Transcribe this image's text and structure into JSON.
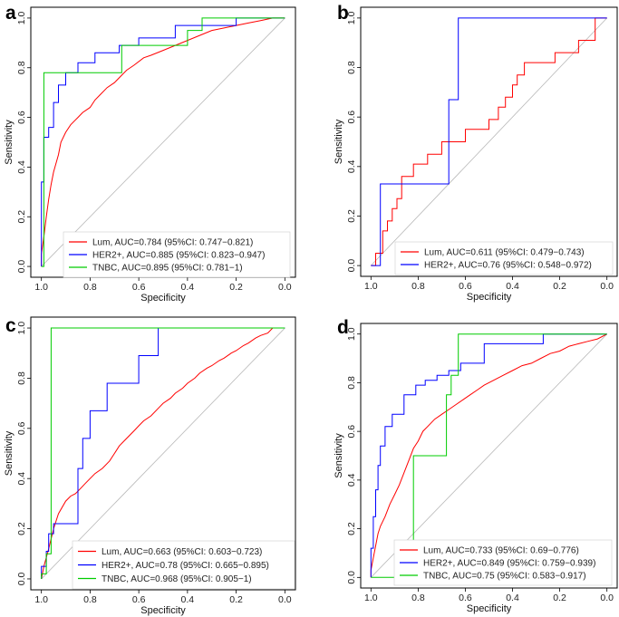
{
  "chart_data": [
    {
      "panel": "a",
      "type": "line",
      "xlabel": "Specificity",
      "ylabel": "Sensitivity",
      "xlim": [
        1.0,
        0.0
      ],
      "ylim": [
        0.0,
        1.0
      ],
      "x_ticks": [
        "1.0",
        "0.8",
        "0.6",
        "0.4",
        "0.2",
        "0.0"
      ],
      "y_ticks": [
        "0.0",
        "0.2",
        "0.4",
        "0.6",
        "0.8",
        "1.0"
      ],
      "legend_position": "bottom-right",
      "series": [
        {
          "name": "Lum, AUC=0.784 (95%CI: 0.747−0.821)",
          "color": "#ff0000",
          "x": [
            1.0,
            1.0,
            0.99,
            0.98,
            0.97,
            0.96,
            0.95,
            0.93,
            0.92,
            0.9,
            0.88,
            0.86,
            0.85,
            0.83,
            0.8,
            0.78,
            0.76,
            0.73,
            0.7,
            0.67,
            0.65,
            0.62,
            0.58,
            0.55,
            0.5,
            0.45,
            0.4,
            0.35,
            0.3,
            0.25,
            0.2,
            0.15,
            0.1,
            0.05,
            0.0
          ],
          "y": [
            0.0,
            0.05,
            0.12,
            0.2,
            0.27,
            0.33,
            0.38,
            0.45,
            0.5,
            0.54,
            0.57,
            0.59,
            0.6,
            0.62,
            0.64,
            0.67,
            0.69,
            0.72,
            0.74,
            0.77,
            0.79,
            0.81,
            0.84,
            0.85,
            0.87,
            0.89,
            0.91,
            0.93,
            0.95,
            0.96,
            0.97,
            0.98,
            0.99,
            1.0,
            1.0
          ]
        },
        {
          "name": "HER2+, AUC=0.885 (95%CI: 0.823−0.947)",
          "color": "#0000ff",
          "x": [
            1.0,
            1.0,
            0.99,
            0.99,
            0.97,
            0.97,
            0.95,
            0.95,
            0.93,
            0.93,
            0.9,
            0.9,
            0.85,
            0.85,
            0.78,
            0.78,
            0.68,
            0.68,
            0.6,
            0.6,
            0.45,
            0.45,
            0.2,
            0.2,
            0.0
          ],
          "y": [
            0.0,
            0.34,
            0.34,
            0.52,
            0.52,
            0.56,
            0.56,
            0.66,
            0.66,
            0.73,
            0.73,
            0.78,
            0.78,
            0.82,
            0.82,
            0.86,
            0.86,
            0.89,
            0.89,
            0.92,
            0.92,
            0.97,
            0.97,
            1.0,
            1.0
          ]
        },
        {
          "name": "TNBC, AUC=0.895 (95%CI: 0.781−1)",
          "color": "#00cc00",
          "x": [
            1.0,
            1.0,
            0.99,
            0.99,
            0.67,
            0.67,
            0.4,
            0.4,
            0.34,
            0.34,
            0.0
          ],
          "y": [
            0.0,
            0.0,
            0.0,
            0.78,
            0.78,
            0.89,
            0.89,
            0.95,
            0.95,
            1.0,
            1.0
          ]
        }
      ]
    },
    {
      "panel": "b",
      "type": "line",
      "xlabel": "Specificity",
      "ylabel": "Sensitivity",
      "xlim": [
        1.0,
        0.0
      ],
      "ylim": [
        0.0,
        1.0
      ],
      "x_ticks": [
        "1.0",
        "0.8",
        "0.6",
        "0.4",
        "0.2",
        "0.0"
      ],
      "y_ticks": [
        "0.0",
        "0.2",
        "0.4",
        "0.6",
        "0.8",
        "1.0"
      ],
      "legend_position": "bottom-right",
      "series": [
        {
          "name": "Lum, AUC=0.611 (95%CI: 0.479−0.743)",
          "color": "#ff0000",
          "x": [
            1.0,
            0.98,
            0.98,
            0.95,
            0.95,
            0.93,
            0.93,
            0.91,
            0.91,
            0.89,
            0.89,
            0.87,
            0.87,
            0.82,
            0.82,
            0.76,
            0.76,
            0.7,
            0.7,
            0.6,
            0.6,
            0.5,
            0.5,
            0.46,
            0.46,
            0.43,
            0.43,
            0.4,
            0.4,
            0.38,
            0.38,
            0.35,
            0.35,
            0.22,
            0.22,
            0.12,
            0.12,
            0.05,
            0.05,
            0.0
          ],
          "y": [
            0.0,
            0.0,
            0.05,
            0.05,
            0.14,
            0.14,
            0.18,
            0.18,
            0.23,
            0.23,
            0.27,
            0.27,
            0.36,
            0.36,
            0.41,
            0.41,
            0.45,
            0.45,
            0.5,
            0.5,
            0.55,
            0.55,
            0.59,
            0.59,
            0.64,
            0.64,
            0.68,
            0.68,
            0.73,
            0.73,
            0.77,
            0.77,
            0.82,
            0.82,
            0.86,
            0.86,
            0.91,
            0.91,
            1.0,
            1.0
          ]
        },
        {
          "name": "HER2+, AUC=0.76 (95%CI: 0.548−0.972)",
          "color": "#0000ff",
          "x": [
            1.0,
            0.98,
            0.98,
            0.96,
            0.96,
            0.67,
            0.67,
            0.63,
            0.63,
            0.0
          ],
          "y": [
            0.0,
            0.0,
            0.0,
            0.0,
            0.33,
            0.33,
            0.67,
            0.67,
            1.0,
            1.0
          ]
        }
      ]
    },
    {
      "panel": "c",
      "type": "line",
      "xlabel": "Specificity",
      "ylabel": "Sensitivity",
      "xlim": [
        1.0,
        0.0
      ],
      "ylim": [
        0.0,
        1.0
      ],
      "x_ticks": [
        "1.0",
        "0.8",
        "0.6",
        "0.4",
        "0.2",
        "0.0"
      ],
      "y_ticks": [
        "0.0",
        "0.2",
        "0.4",
        "0.6",
        "0.8",
        "1.0"
      ],
      "legend_position": "bottom-right",
      "series": [
        {
          "name": "Lum, AUC=0.663 (95%CI: 0.603−0.723)",
          "color": "#ff0000",
          "x": [
            1.0,
            0.99,
            0.97,
            0.95,
            0.93,
            0.9,
            0.88,
            0.86,
            0.84,
            0.82,
            0.8,
            0.78,
            0.75,
            0.72,
            0.7,
            0.68,
            0.65,
            0.62,
            0.6,
            0.58,
            0.55,
            0.52,
            0.5,
            0.47,
            0.45,
            0.42,
            0.4,
            0.37,
            0.35,
            0.32,
            0.3,
            0.27,
            0.25,
            0.22,
            0.2,
            0.17,
            0.15,
            0.12,
            0.1,
            0.07,
            0.05,
            0.0
          ],
          "y": [
            0.0,
            0.05,
            0.12,
            0.2,
            0.26,
            0.31,
            0.33,
            0.34,
            0.36,
            0.38,
            0.4,
            0.42,
            0.44,
            0.47,
            0.5,
            0.53,
            0.56,
            0.59,
            0.61,
            0.63,
            0.65,
            0.68,
            0.7,
            0.72,
            0.74,
            0.76,
            0.78,
            0.8,
            0.82,
            0.84,
            0.85,
            0.87,
            0.88,
            0.9,
            0.91,
            0.93,
            0.94,
            0.96,
            0.97,
            0.98,
            1.0,
            1.0
          ]
        },
        {
          "name": "HER2+, AUC=0.78 (95%CI: 0.665−0.895)",
          "color": "#0000ff",
          "x": [
            1.0,
            1.0,
            0.98,
            0.98,
            0.97,
            0.97,
            0.95,
            0.95,
            0.85,
            0.85,
            0.83,
            0.83,
            0.8,
            0.8,
            0.73,
            0.73,
            0.6,
            0.6,
            0.52,
            0.52,
            0.0
          ],
          "y": [
            0.0,
            0.05,
            0.05,
            0.11,
            0.11,
            0.18,
            0.18,
            0.22,
            0.22,
            0.44,
            0.44,
            0.56,
            0.56,
            0.67,
            0.67,
            0.78,
            0.78,
            0.89,
            0.89,
            1.0,
            1.0
          ]
        },
        {
          "name": "TNBC, AUC=0.968 (95%CI: 0.905−1)",
          "color": "#00cc00",
          "x": [
            1.0,
            1.0,
            0.98,
            0.98,
            0.96,
            0.96,
            0.0
          ],
          "y": [
            0.0,
            0.02,
            0.02,
            0.1,
            0.1,
            1.0,
            1.0
          ]
        }
      ]
    },
    {
      "panel": "d",
      "type": "line",
      "xlabel": "Specificity",
      "ylabel": "Sensitivity",
      "xlim": [
        1.0,
        0.0
      ],
      "ylim": [
        0.0,
        1.0
      ],
      "x_ticks": [
        "1.0",
        "0.8",
        "0.6",
        "0.4",
        "0.2",
        "0.0"
      ],
      "y_ticks": [
        "0.0",
        "0.2",
        "0.4",
        "0.6",
        "0.8",
        "1.0"
      ],
      "legend_position": "bottom-right",
      "series": [
        {
          "name": "Lum, AUC=0.733 (95%CI: 0.69−0.776)",
          "color": "#ff0000",
          "x": [
            1.0,
            1.0,
            0.99,
            0.98,
            0.97,
            0.96,
            0.94,
            0.92,
            0.9,
            0.88,
            0.86,
            0.84,
            0.82,
            0.8,
            0.78,
            0.76,
            0.73,
            0.7,
            0.67,
            0.64,
            0.61,
            0.58,
            0.55,
            0.52,
            0.48,
            0.44,
            0.4,
            0.36,
            0.32,
            0.28,
            0.24,
            0.2,
            0.16,
            0.12,
            0.08,
            0.04,
            0.0
          ],
          "y": [
            0.0,
            0.03,
            0.08,
            0.13,
            0.18,
            0.21,
            0.25,
            0.3,
            0.34,
            0.38,
            0.43,
            0.48,
            0.53,
            0.56,
            0.6,
            0.62,
            0.65,
            0.67,
            0.69,
            0.71,
            0.73,
            0.75,
            0.77,
            0.79,
            0.81,
            0.83,
            0.85,
            0.87,
            0.88,
            0.9,
            0.92,
            0.93,
            0.95,
            0.96,
            0.97,
            0.98,
            1.0
          ]
        },
        {
          "name": "HER2+, AUC=0.849 (95%CI: 0.759−0.939)",
          "color": "#0000ff",
          "x": [
            1.0,
            1.0,
            0.99,
            0.99,
            0.98,
            0.98,
            0.97,
            0.97,
            0.96,
            0.96,
            0.94,
            0.94,
            0.91,
            0.91,
            0.86,
            0.86,
            0.81,
            0.81,
            0.77,
            0.77,
            0.72,
            0.72,
            0.67,
            0.67,
            0.62,
            0.62,
            0.52,
            0.52,
            0.27,
            0.27,
            0.0
          ],
          "y": [
            0.0,
            0.12,
            0.12,
            0.25,
            0.25,
            0.36,
            0.36,
            0.46,
            0.46,
            0.54,
            0.54,
            0.62,
            0.62,
            0.67,
            0.67,
            0.75,
            0.75,
            0.79,
            0.79,
            0.81,
            0.81,
            0.83,
            0.83,
            0.85,
            0.85,
            0.88,
            0.88,
            0.96,
            0.96,
            1.0,
            1.0
          ]
        },
        {
          "name": "TNBC, AUC=0.75 (95%CI: 0.583−0.917)",
          "color": "#00cc00",
          "x": [
            1.0,
            0.83,
            0.83,
            0.82,
            0.82,
            0.68,
            0.68,
            0.66,
            0.66,
            0.63,
            0.63,
            0.0
          ],
          "y": [
            0.0,
            0.0,
            0.12,
            0.12,
            0.5,
            0.5,
            0.75,
            0.75,
            0.83,
            0.83,
            1.0,
            1.0
          ]
        }
      ]
    }
  ]
}
